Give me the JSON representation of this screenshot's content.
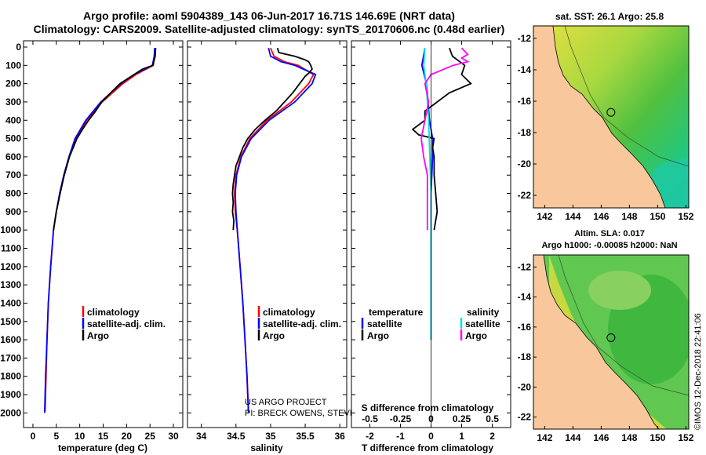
{
  "title": {
    "line1": "Argo profile: aoml 5904389_143 06-Jun-2017 16.71S 146.69E (NRT data)",
    "line2": "Climatology: CARS2009. Satellite-adjusted climatology: synTS_20170606.nc (0.48d earlier)"
  },
  "credits": {
    "project": "US ARGO PROJECT",
    "pi": "PI: BRECK OWENS, STEVE JAYNE, P. ROBBINS",
    "imos": "©IMOS 12-Dec-2018 22:41:06"
  },
  "legend": {
    "climatology": "climatology",
    "satellite": "satellite-adj. clim.",
    "argo": "Argo",
    "diff_temperature": "temperature",
    "diff_salinity": "salinity",
    "diff_satellite": "satellite",
    "diff_argo": "Argo"
  },
  "colors": {
    "climatology": "#ff0000",
    "satellite": "#0000ff",
    "argo": "#000000",
    "sal_satellite": "#00e0e0",
    "sal_argo": "#ff00ff",
    "land": "#f8c89c"
  },
  "maps": {
    "sst_title": "sat. SST: 26.1 Argo: 25.8",
    "sla_title1": "Altim. SLA: 0.017",
    "sla_title2": "Argo h1000: -0.00085 h2000: NaN",
    "lon_ticks": [
      "142",
      "144",
      "146",
      "148",
      "150",
      "152"
    ],
    "lat_ticks": [
      "-12",
      "-14",
      "-16",
      "-18",
      "-20",
      "-22"
    ],
    "lon_range": [
      141.2,
      152.2
    ],
    "lat_range": [
      -11.2,
      -22.8
    ],
    "argo_position": {
      "lon": 146.69,
      "lat": -16.71
    }
  },
  "chart_data": [
    {
      "type": "line",
      "id": "temperature",
      "xlabel": "temperature (deg C)",
      "ylabel": "",
      "xlim": [
        -2,
        32
      ],
      "ylim": [
        0,
        2080
      ],
      "xticks": [
        0,
        5,
        10,
        15,
        20,
        25,
        30
      ],
      "yticks": [
        0,
        100,
        200,
        300,
        400,
        500,
        600,
        700,
        800,
        900,
        1000,
        1100,
        1200,
        1300,
        1400,
        1500,
        1600,
        1700,
        1800,
        1900,
        2000
      ],
      "series": [
        {
          "name": "climatology",
          "depth": [
            5,
            50,
            100,
            150,
            200,
            300,
            400,
            500,
            600,
            700,
            800,
            900,
            1000,
            1200,
            1400,
            1600,
            1800,
            1990
          ],
          "values": [
            26.1,
            26.0,
            25.7,
            22.0,
            19.2,
            14.8,
            11.5,
            9.2,
            7.8,
            6.7,
            5.8,
            5.0,
            4.4,
            3.8,
            3.3,
            3.0,
            2.8,
            2.6
          ]
        },
        {
          "name": "satellite-adj. clim.",
          "depth": [
            5,
            50,
            100,
            150,
            200,
            300,
            400,
            500,
            600,
            700,
            800,
            900,
            1000,
            1200,
            1400,
            1600,
            1800,
            2000
          ],
          "values": [
            26.0,
            25.9,
            25.5,
            21.6,
            18.8,
            14.5,
            11.3,
            9.0,
            7.7,
            6.6,
            5.7,
            5.0,
            4.4,
            3.8,
            3.3,
            3.0,
            2.7,
            2.5
          ]
        },
        {
          "name": "Argo",
          "depth": [
            5,
            50,
            100,
            120,
            150,
            200,
            250,
            300,
            350,
            400,
            450,
            500,
            600,
            700,
            800,
            900,
            1000
          ],
          "values": [
            26.2,
            26.1,
            25.6,
            23.4,
            21.6,
            18.6,
            16.6,
            14.7,
            13.4,
            11.9,
            10.6,
            9.4,
            7.8,
            6.7,
            5.8,
            5.0,
            4.4
          ]
        }
      ]
    },
    {
      "type": "line",
      "id": "salinity",
      "xlabel": "salinity",
      "ylabel": "",
      "xlim": [
        33.8,
        36.1
      ],
      "ylim": [
        0,
        2080
      ],
      "xticks": [
        34,
        34.5,
        35,
        35.5,
        36
      ],
      "series": [
        {
          "name": "climatology",
          "depth": [
            5,
            50,
            80,
            100,
            150,
            200,
            300,
            400,
            500,
            600,
            700,
            800,
            900,
            1000,
            1200,
            1400,
            1600,
            1800,
            1990
          ],
          "values": [
            35.0,
            35.05,
            35.2,
            35.4,
            35.62,
            35.55,
            35.3,
            34.95,
            34.7,
            34.57,
            34.5,
            34.48,
            34.49,
            34.52,
            34.56,
            34.6,
            34.63,
            34.66,
            34.68
          ]
        },
        {
          "name": "satellite-adj. clim.",
          "depth": [
            5,
            50,
            80,
            100,
            150,
            200,
            300,
            400,
            500,
            600,
            700,
            800,
            900,
            1000,
            1200,
            1400,
            1600,
            1800,
            2000
          ],
          "values": [
            34.97,
            35.0,
            35.15,
            35.35,
            35.65,
            35.6,
            35.35,
            34.98,
            34.72,
            34.58,
            34.51,
            34.49,
            34.5,
            34.52,
            34.56,
            34.6,
            34.63,
            34.66,
            34.68
          ]
        },
        {
          "name": "Argo",
          "depth": [
            5,
            30,
            50,
            70,
            80,
            100,
            120,
            140,
            160,
            200,
            250,
            300,
            350,
            400,
            450,
            500,
            550,
            600,
            650,
            700,
            750,
            800,
            850,
            900,
            950,
            1000
          ],
          "values": [
            35.1,
            35.12,
            35.35,
            35.5,
            35.55,
            35.58,
            35.6,
            35.56,
            35.5,
            35.42,
            35.32,
            35.2,
            35.08,
            34.92,
            34.78,
            34.67,
            34.6,
            34.55,
            34.5,
            34.48,
            34.46,
            34.45,
            34.46,
            34.45,
            34.47,
            34.46
          ]
        }
      ]
    },
    {
      "type": "line",
      "id": "difference",
      "xlabel": "T difference from climatology",
      "xlabel_top": "S difference from climatology",
      "ylabel": "",
      "xlim": [
        -2.6,
        2.6
      ],
      "ylim": [
        0,
        2080
      ],
      "xticks": [
        -2,
        -1,
        0,
        1,
        2
      ],
      "sticks": [
        -0.5,
        -0.25,
        0,
        0.25,
        0.5
      ],
      "series": [
        {
          "name": "temperature satellite",
          "depth": [
            5,
            100,
            200,
            300,
            400,
            500,
            600,
            800,
            1000,
            1200,
            1400,
            1600
          ],
          "values": [
            -0.2,
            -0.3,
            -0.15,
            -0.1,
            -0.05,
            0.05,
            0.05,
            0.0,
            0.0,
            0.0,
            0.0,
            0.0
          ]
        },
        {
          "name": "temperature Argo",
          "depth": [
            5,
            50,
            100,
            150,
            200,
            250,
            300,
            350,
            400,
            450,
            480,
            500,
            550,
            600,
            700,
            800,
            900,
            1000
          ],
          "values": [
            0.6,
            0.7,
            1.1,
            1.0,
            1.3,
            0.6,
            0.2,
            -0.2,
            -0.2,
            -0.6,
            -0.4,
            0.1,
            0.05,
            0.1,
            0.1,
            0.15,
            0.2,
            0.1
          ]
        },
        {
          "name": "salinity satellite",
          "depth": [
            5,
            100,
            200,
            400,
            600,
            800,
            1000,
            1200,
            1400,
            1600
          ],
          "values": [
            -0.05,
            -0.06,
            -0.04,
            -0.02,
            -0.01,
            0.0,
            0.0,
            0.0,
            0.0,
            0.0
          ]
        },
        {
          "name": "salinity Argo",
          "depth": [
            5,
            40,
            60,
            80,
            100,
            150,
            200,
            300,
            400,
            500,
            600,
            700,
            800,
            900,
            1000
          ],
          "values": [
            0.25,
            0.3,
            0.25,
            0.3,
            0.18,
            0.0,
            -0.05,
            -0.02,
            -0.05,
            -0.08,
            -0.06,
            -0.03,
            -0.03,
            -0.03,
            -0.03
          ]
        }
      ]
    }
  ]
}
